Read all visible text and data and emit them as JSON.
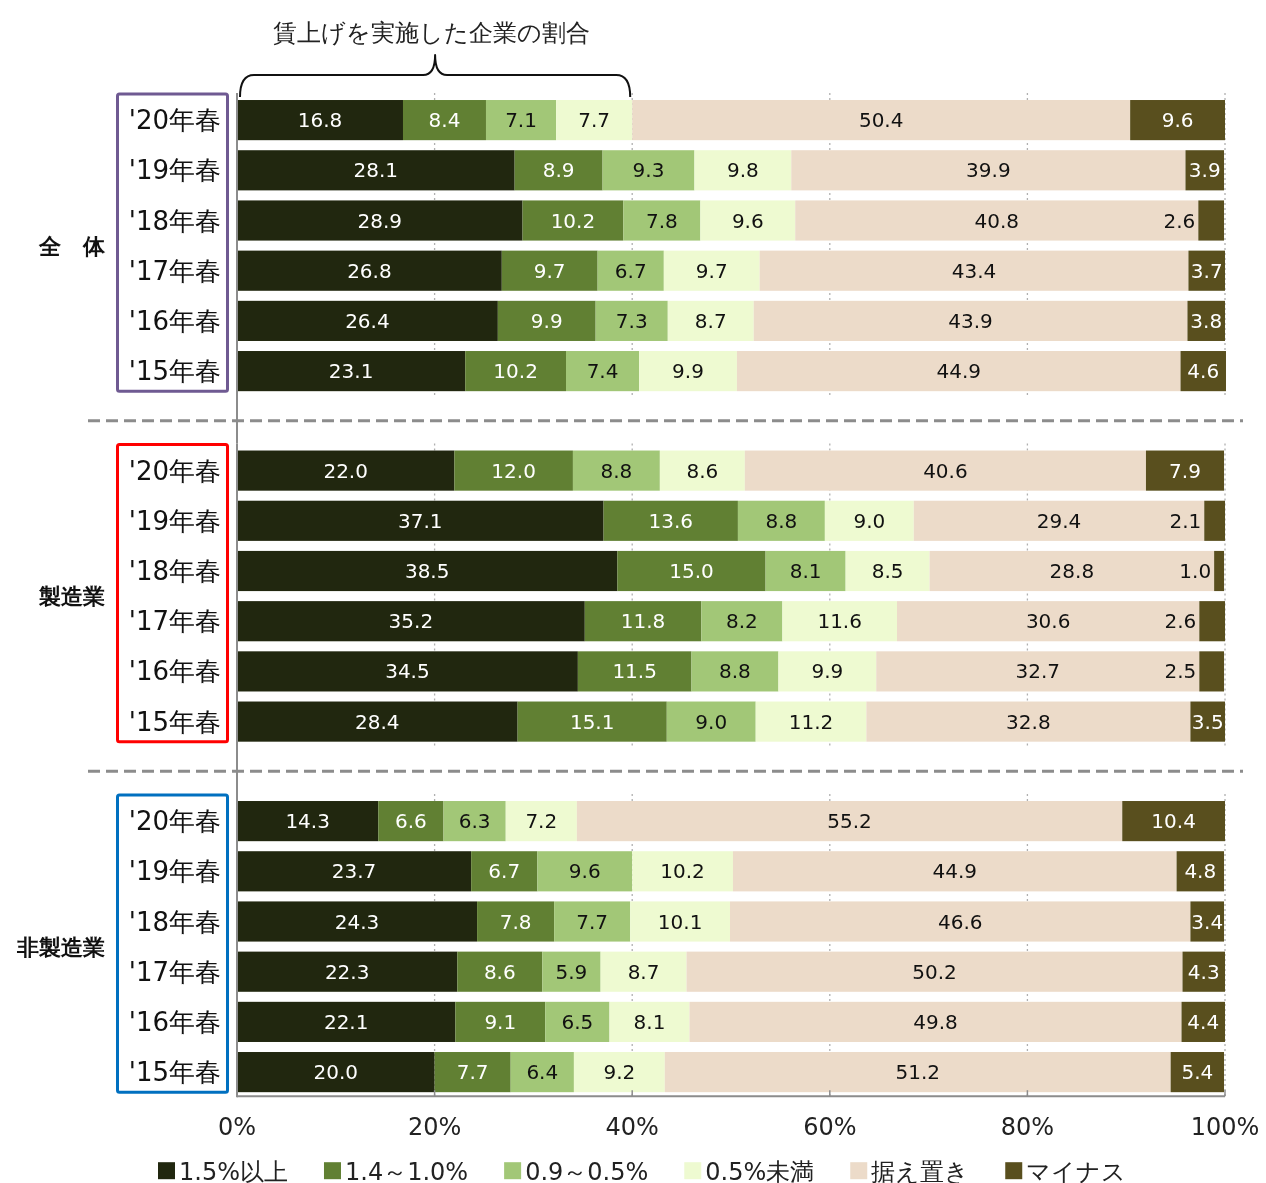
{
  "chart_data": [
    {
      "type": "bar",
      "orientation": "horizontal",
      "stacked": true,
      "ylabel": "全　体",
      "annotations": [
        "賃上げを実施した企業の割合"
      ],
      "categories": [
        "'20年春",
        "'19年春",
        "'18年春",
        "'17年春",
        "'16年春",
        "'15年春"
      ],
      "series": [
        {
          "color": "#21270f",
          "values": [
            16.8,
            28.1,
            28.9,
            26.8,
            26.4,
            23.1
          ],
          "value_labels": [
            "16.8",
            "28.1",
            "28.9",
            "26.8",
            "26.4",
            "23.1"
          ]
        },
        {
          "color": "#618033",
          "values": [
            8.4,
            8.9,
            10.2,
            9.7,
            9.9,
            10.2
          ],
          "value_labels": [
            "8.4",
            "8.9",
            "10.2",
            "9.7",
            "9.9",
            "10.2"
          ]
        },
        {
          "color": "#a2c777",
          "values": [
            7.1,
            9.3,
            7.8,
            6.7,
            7.3,
            7.4
          ],
          "value_labels": [
            "7.1",
            "9.3",
            "7.8",
            "6.7",
            "7.3",
            "7.4"
          ]
        },
        {
          "color": "#eefad1",
          "values": [
            7.7,
            9.8,
            9.6,
            9.7,
            8.7,
            9.9
          ],
          "value_labels": [
            "7.7",
            "9.8",
            "9.6",
            "9.7",
            "8.7",
            "9.9"
          ]
        },
        {
          "color": "#ecdbc9",
          "values": [
            50.4,
            39.9,
            40.8,
            43.4,
            43.9,
            44.9
          ],
          "value_labels": [
            "50.4",
            "39.9",
            "40.8",
            "43.4",
            "43.9",
            "44.9"
          ]
        },
        {
          "color": "#594f1e",
          "values": [
            9.6,
            3.9,
            2.6,
            3.7,
            3.8,
            4.6
          ],
          "value_labels": [
            "9.6",
            "3.9",
            "2.6",
            "3.7",
            "3.8",
            "4.6"
          ]
        }
      ],
      "xlim": [
        0,
        100
      ],
      "xticks": [
        0,
        20,
        40,
        60,
        80,
        100
      ],
      "grid": "x",
      "tick_labels": "y"
    },
    {
      "type": "bar",
      "orientation": "horizontal",
      "stacked": true,
      "ylabel": "製造業",
      "categories": [
        "'20年春",
        "'19年春",
        "'18年春",
        "'17年春",
        "'16年春",
        "'15年春"
      ],
      "series": [
        {
          "color": "#21270f",
          "values": [
            22.0,
            37.1,
            38.5,
            35.2,
            34.5,
            28.4
          ],
          "value_labels": [
            "22.0",
            "37.1",
            "38.5",
            "35.2",
            "34.5",
            "28.4"
          ]
        },
        {
          "color": "#618033",
          "values": [
            12.0,
            13.6,
            15.0,
            11.8,
            11.5,
            15.1
          ],
          "value_labels": [
            "12.0",
            "13.6",
            "15.0",
            "11.8",
            "11.5",
            "15.1"
          ]
        },
        {
          "color": "#a2c777",
          "values": [
            8.8,
            8.8,
            8.1,
            8.2,
            8.8,
            9.0
          ],
          "value_labels": [
            "8.8",
            "8.8",
            "8.1",
            "8.2",
            "8.8",
            "9.0"
          ]
        },
        {
          "color": "#eefad1",
          "values": [
            8.6,
            9.0,
            8.5,
            11.6,
            9.9,
            11.2
          ],
          "value_labels": [
            "8.6",
            "9.0",
            "8.5",
            "11.6",
            "9.9",
            "11.2"
          ]
        },
        {
          "color": "#ecdbc9",
          "values": [
            40.6,
            29.4,
            28.8,
            30.6,
            32.7,
            32.8
          ],
          "value_labels": [
            "40.6",
            "29.4",
            "28.8",
            "30.6",
            "32.7",
            "32.8"
          ]
        },
        {
          "color": "#594f1e",
          "values": [
            7.9,
            2.1,
            1.0,
            2.6,
            2.5,
            3.5
          ],
          "value_labels": [
            "7.9",
            "2.1",
            "1.0",
            "2.6",
            "2.5",
            "3.5"
          ]
        }
      ],
      "xlim": [
        0,
        100
      ],
      "xticks": [
        0,
        20,
        40,
        60,
        80,
        100
      ],
      "grid": "x",
      "tick_labels": "y"
    },
    {
      "type": "bar",
      "orientation": "horizontal",
      "stacked": true,
      "ylabel": "非製造業",
      "categories": [
        "'20年春",
        "'19年春",
        "'18年春",
        "'17年春",
        "'16年春",
        "'15年春"
      ],
      "series": [
        {
          "name": "1.5%以上",
          "color": "#21270f",
          "values": [
            14.3,
            23.7,
            24.3,
            22.3,
            22.1,
            20.0
          ],
          "value_labels": [
            "14.3",
            "23.7",
            "24.3",
            "22.3",
            "22.1",
            "20.0"
          ]
        },
        {
          "name": "1.4～1.0%",
          "color": "#618033",
          "values": [
            6.6,
            6.7,
            7.8,
            8.6,
            9.1,
            7.7
          ],
          "value_labels": [
            "6.6",
            "6.7",
            "7.8",
            "8.6",
            "9.1",
            "7.7"
          ]
        },
        {
          "name": "0.9～0.5%",
          "color": "#a2c777",
          "values": [
            6.3,
            9.6,
            7.7,
            5.9,
            6.5,
            6.4
          ],
          "value_labels": [
            "6.3",
            "9.6",
            "7.7",
            "5.9",
            "6.5",
            "6.4"
          ]
        },
        {
          "name": "0.5%未満",
          "color": "#eefad1",
          "values": [
            7.2,
            10.2,
            10.1,
            8.7,
            8.1,
            9.2
          ],
          "value_labels": [
            "7.2",
            "10.2",
            "10.1",
            "8.7",
            "8.1",
            "9.2"
          ]
        },
        {
          "name": "据え置き",
          "color": "#ecdbc9",
          "values": [
            55.2,
            44.9,
            46.6,
            50.2,
            49.8,
            51.2
          ],
          "value_labels": [
            "55.2",
            "44.9",
            "46.6",
            "50.2",
            "49.8",
            "51.2"
          ]
        },
        {
          "name": "マイナス",
          "color": "#594f1e",
          "values": [
            10.4,
            4.8,
            3.4,
            4.3,
            4.4,
            5.4
          ],
          "value_labels": [
            "10.4",
            "4.8",
            "3.4",
            "4.3",
            "4.4",
            "5.4"
          ]
        }
      ],
      "xlim": [
        0,
        100
      ],
      "xticks": [
        {
          "value": 0,
          "label": "0%"
        },
        {
          "value": 20,
          "label": "20%"
        },
        {
          "value": 40,
          "label": "40%"
        },
        {
          "value": 60,
          "label": "60%"
        },
        {
          "value": 80,
          "label": "80%"
        },
        {
          "value": 100,
          "label": "100%"
        }
      ],
      "grid": "x",
      "legend": "bottom"
    }
  ]
}
